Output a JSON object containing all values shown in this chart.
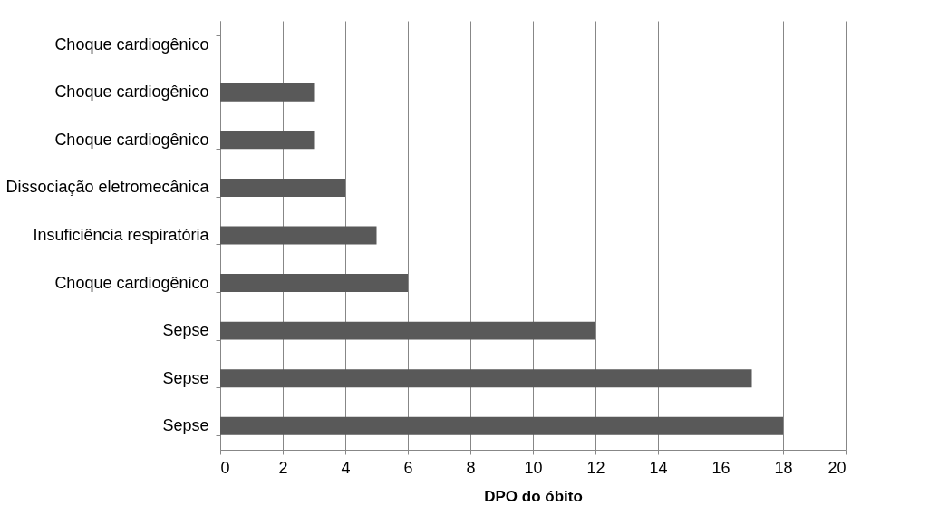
{
  "chart_data": {
    "type": "bar",
    "orientation": "horizontal",
    "xlabel": "DPO do óbito",
    "categories": [
      "Choque cardiogênico",
      "Choque cardiogênico",
      "Choque cardiogênico",
      "Dissociação eletromecânica",
      "Insuficiência respiratória",
      "Choque cardiogênico",
      "Sepse",
      "Sepse",
      "Sepse"
    ],
    "values": [
      0,
      3,
      3,
      4,
      5,
      6,
      12,
      17,
      18
    ],
    "color": "#595959",
    "xlim": [
      0,
      20
    ],
    "xticks": [
      0,
      2,
      4,
      6,
      8,
      10,
      12,
      14,
      16,
      18,
      20
    ],
    "grid": "x"
  }
}
